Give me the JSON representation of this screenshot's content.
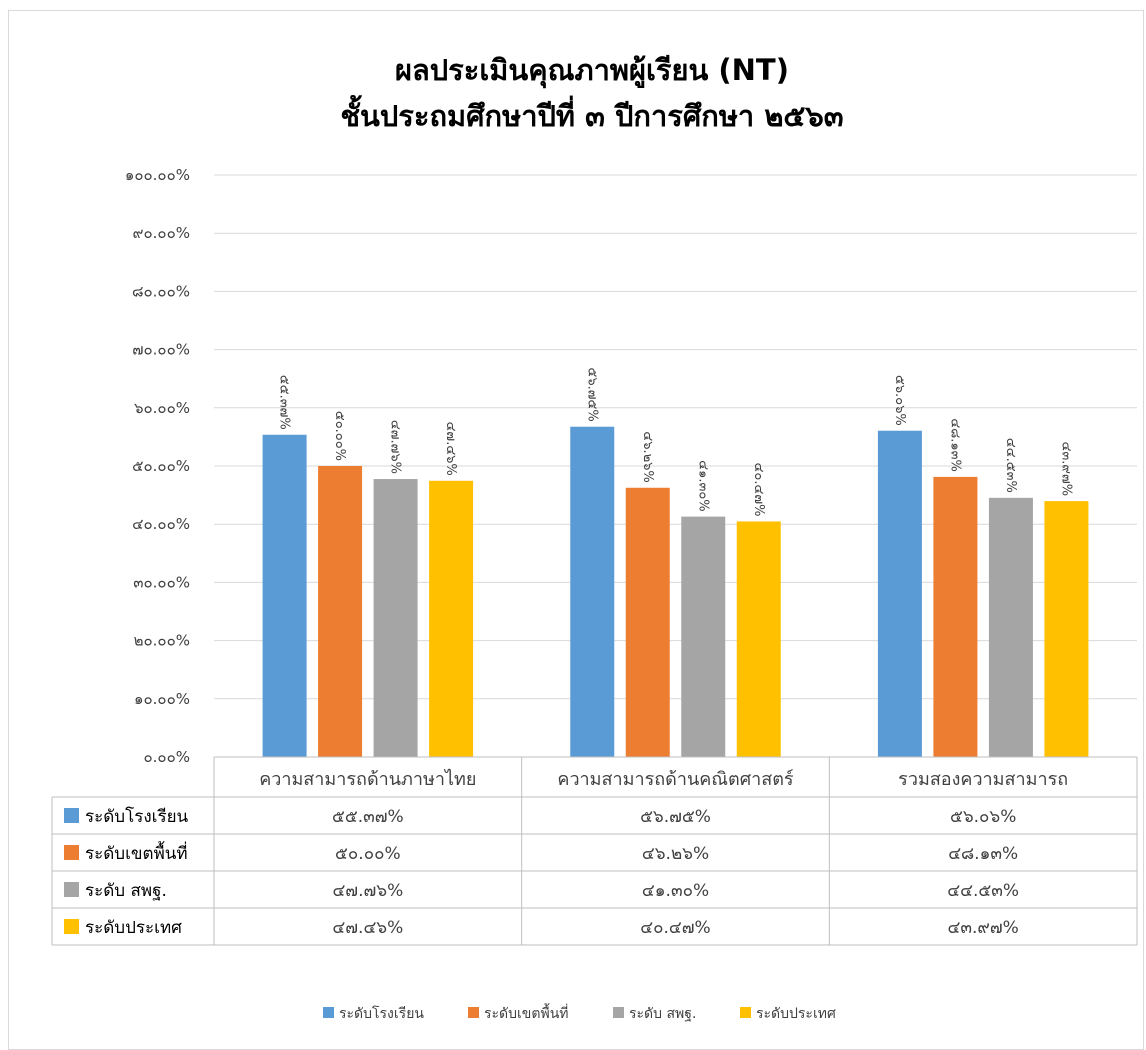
{
  "chart_data": {
    "type": "bar",
    "title": "ผลประเมินคุณภาพผู้เรียน (NT)",
    "subtitle": "ชั้นประถมศึกษาปีที่ ๓ ปีการศึกษา ๒๕๖๓",
    "xlabel": "",
    "ylabel": "",
    "ylim": [
      0,
      100
    ],
    "grid": true,
    "legend_position": "bottom",
    "y_ticks": [
      0,
      10,
      20,
      30,
      40,
      50,
      60,
      70,
      80,
      90,
      100
    ],
    "y_tick_labels": [
      "๐.๐๐%",
      "๑๐.๐๐%",
      "๒๐.๐๐%",
      "๓๐.๐๐%",
      "๔๐.๐๐%",
      "๕๐.๐๐%",
      "๖๐.๐๐%",
      "๗๐.๐๐%",
      "๘๐.๐๐%",
      "๙๐.๐๐%",
      "๑๐๐.๐๐%"
    ],
    "categories": [
      "ความสามารถด้านภาษาไทย",
      "ความสามารถด้านคณิตศาสตร์",
      "รวมสองความสามารถ"
    ],
    "series": [
      {
        "name": "ระดับโรงเรียน",
        "color": "#5B9BD5",
        "values": [
          55.37,
          56.75,
          56.06
        ],
        "labels": [
          "๕๕.๓๗%",
          "๕๖.๗๕%",
          "๕๖.๐๖%"
        ]
      },
      {
        "name": "ระดับเขตพื้นที่",
        "color": "#ED7D31",
        "values": [
          50.0,
          46.26,
          48.13
        ],
        "labels": [
          "๕๐.๐๐%",
          "๔๖.๒๖%",
          "๔๘.๑๓%"
        ]
      },
      {
        "name": "ระดับ สพฐ.",
        "color": "#A5A5A5",
        "values": [
          47.76,
          41.3,
          44.53
        ],
        "labels": [
          "๔๗.๗๖%",
          "๔๑.๓๐%",
          "๔๔.๕๓%"
        ]
      },
      {
        "name": "ระดับประเทศ",
        "color": "#FFC000",
        "values": [
          47.46,
          40.47,
          43.97
        ],
        "labels": [
          "๔๗.๔๖%",
          "๔๐.๔๗%",
          "๔๓.๙๗%"
        ]
      }
    ]
  }
}
